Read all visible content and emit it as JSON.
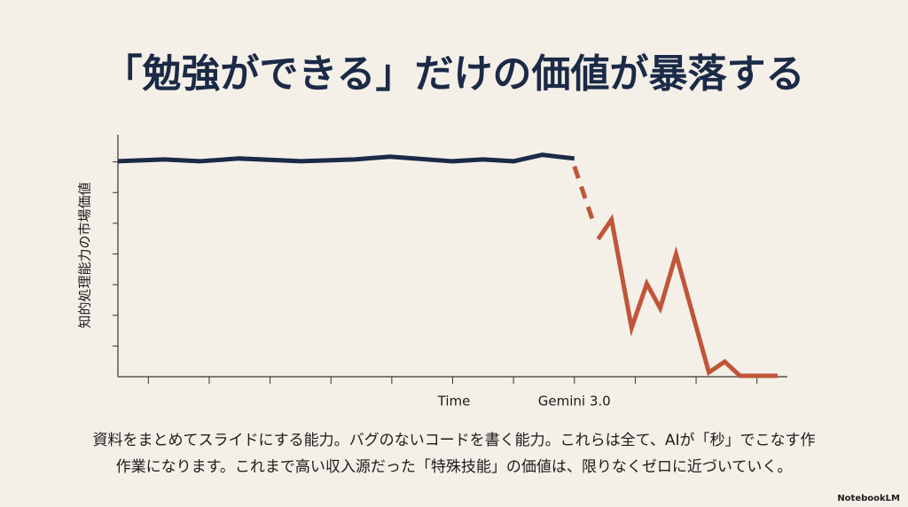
{
  "title": "「勉強ができる」だけの価値が暴落する",
  "chart_data": {
    "type": "line",
    "y_label": "知的処理能力の市場価値",
    "x_label": "Time",
    "annotation": {
      "text": "Gemini 3.0",
      "x": 7.5
    },
    "xlim": [
      0,
      11
    ],
    "ylim": [
      0,
      8
    ],
    "xticks": [
      0.5,
      1.5,
      2.5,
      3.5,
      4.5,
      5.5,
      6.5,
      7.5,
      8.5,
      9.5,
      10.5
    ],
    "yticks": [
      1,
      2,
      3,
      4,
      5,
      6,
      7
    ],
    "series": [
      {
        "color": "#1b2a47",
        "dash": false,
        "x": [
          0,
          0.76,
          1.34,
          1.99,
          3.01,
          3.89,
          4.47,
          5.49,
          6.0,
          6.5,
          6.97,
          7.5
        ],
        "values": [
          7.02,
          7.08,
          7.02,
          7.11,
          7.02,
          7.08,
          7.17,
          7.02,
          7.08,
          7.02,
          7.23,
          7.11
        ]
      },
      {
        "color": "#c0553a",
        "dash": true,
        "x": [
          7.5,
          7.8
        ],
        "values": [
          6.85,
          5.1
        ]
      },
      {
        "color": "#c0553a",
        "dash": false,
        "x": [
          7.89,
          8.11,
          8.44,
          8.69,
          8.91,
          9.17,
          9.71,
          9.97,
          10.22,
          10.84
        ],
        "values": [
          4.48,
          5.12,
          1.59,
          3.03,
          2.23,
          3.99,
          0.14,
          0.49,
          0.03,
          0.03
        ]
      }
    ]
  },
  "body_lines": [
    "資料をまとめてスライドにする能力。バグのないコードを書く能力。これらは全て、AIが「秒」でこなす作",
    "作業になります。これまで高い収入源だった「特殊技能」の価値は、限りなくゼロに近づいていく。"
  ],
  "footer": "NotebookLM"
}
